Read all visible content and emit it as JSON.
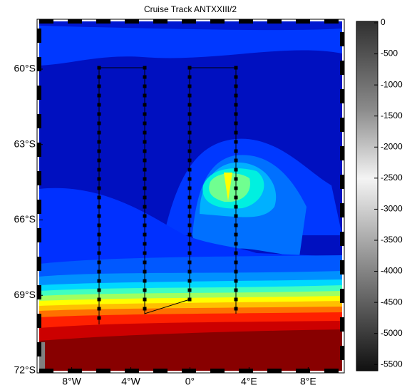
{
  "title": "Cruise Track ANTXXIII/2",
  "map": {
    "xlim": [
      -10.2,
      10.3
    ],
    "ylim": [
      -58.1,
      -72
    ],
    "lon_ticks": [
      {
        "value": -8,
        "label": "8°W"
      },
      {
        "value": -4,
        "label": "4°W"
      },
      {
        "value": 0,
        "label": "0°"
      },
      {
        "value": 4,
        "label": "4°E"
      },
      {
        "value": 8,
        "label": "8°E"
      }
    ],
    "lat_ticks": [
      {
        "value": -60,
        "label": "60°S"
      },
      {
        "value": -63,
        "label": "63°S"
      },
      {
        "value": -66,
        "label": "66°S"
      },
      {
        "value": -69,
        "label": "69°S"
      },
      {
        "value": -72,
        "label": "72°S"
      }
    ]
  },
  "colorbar": {
    "lim": [
      0,
      -5600
    ],
    "ticks": [
      0,
      -500,
      -1000,
      -1500,
      -2000,
      -2500,
      -3000,
      -3500,
      -4000,
      -4500,
      -5000,
      -5500
    ]
  }
}
